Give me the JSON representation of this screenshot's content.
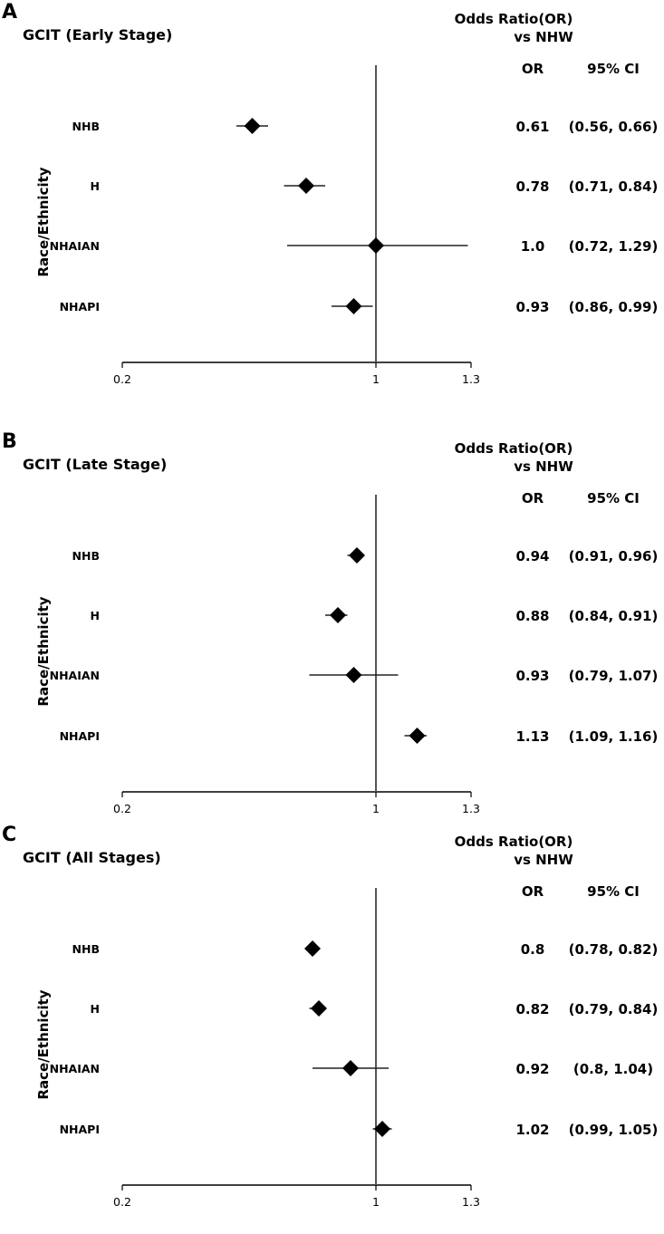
{
  "chart_data": [
    {
      "type": "forest",
      "panel_letter": "A",
      "title": "GCIT (Early Stage)",
      "header": [
        "Odds Ratio(OR)",
        "vs NHW"
      ],
      "column_headers": [
        "OR",
        "95% CI"
      ],
      "ylabel": "Race/Ethnicity",
      "xlim": [
        0.2,
        1.3
      ],
      "xticks": [
        "0.2",
        "1",
        "1.3"
      ],
      "reference_line": 1,
      "rows": [
        {
          "group": "NHB",
          "or": 0.61,
          "lo": 0.56,
          "hi": 0.66,
          "or_text": "0.61",
          "ci_text": "(0.56, 0.66)"
        },
        {
          "group": "H",
          "or": 0.78,
          "lo": 0.71,
          "hi": 0.84,
          "or_text": "0.78",
          "ci_text": "(0.71, 0.84)"
        },
        {
          "group": "NHAIAN",
          "or": 1.0,
          "lo": 0.72,
          "hi": 1.29,
          "or_text": "1.0",
          "ci_text": "(0.72, 1.29)"
        },
        {
          "group": "NHAPI",
          "or": 0.93,
          "lo": 0.86,
          "hi": 0.99,
          "or_text": "0.93",
          "ci_text": "(0.86, 0.99)"
        }
      ]
    },
    {
      "type": "forest",
      "panel_letter": "B",
      "title": "GCIT (Late Stage)",
      "header": [
        "Odds Ratio(OR)",
        "vs NHW"
      ],
      "column_headers": [
        "OR",
        "95% CI"
      ],
      "ylabel": "Race/Ethnicity",
      "xlim": [
        0.2,
        1.3
      ],
      "xticks": [
        "0.2",
        "1",
        "1.3"
      ],
      "reference_line": 1,
      "rows": [
        {
          "group": "NHB",
          "or": 0.94,
          "lo": 0.91,
          "hi": 0.96,
          "or_text": "0.94",
          "ci_text": "(0.91, 0.96)"
        },
        {
          "group": "H",
          "or": 0.88,
          "lo": 0.84,
          "hi": 0.91,
          "or_text": "0.88",
          "ci_text": "(0.84, 0.91)"
        },
        {
          "group": "NHAIAN",
          "or": 0.93,
          "lo": 0.79,
          "hi": 1.07,
          "or_text": "0.93",
          "ci_text": "(0.79, 1.07)"
        },
        {
          "group": "NHAPI",
          "or": 1.13,
          "lo": 1.09,
          "hi": 1.16,
          "or_text": "1.13",
          "ci_text": "(1.09, 1.16)"
        }
      ]
    },
    {
      "type": "forest",
      "panel_letter": "C",
      "title": "GCIT (All Stages)",
      "header": [
        "Odds Ratio(OR)",
        "vs NHW"
      ],
      "column_headers": [
        "OR",
        "95% CI"
      ],
      "ylabel": "Race/Ethnicity",
      "xlim": [
        0.2,
        1.3
      ],
      "xticks": [
        "0.2",
        "1",
        "1.3"
      ],
      "reference_line": 1,
      "rows": [
        {
          "group": "NHB",
          "or": 0.8,
          "lo": 0.78,
          "hi": 0.82,
          "or_text": "0.8",
          "ci_text": "(0.78, 0.82)"
        },
        {
          "group": "H",
          "or": 0.82,
          "lo": 0.79,
          "hi": 0.84,
          "or_text": "0.82",
          "ci_text": "(0.79, 0.84)"
        },
        {
          "group": "NHAIAN",
          "or": 0.92,
          "lo": 0.8,
          "hi": 1.04,
          "or_text": "0.92",
          "ci_text": "(0.8, 1.04)"
        },
        {
          "group": "NHAPI",
          "or": 1.02,
          "lo": 0.99,
          "hi": 1.05,
          "or_text": "1.02",
          "ci_text": "(0.99, 1.05)"
        }
      ]
    }
  ]
}
